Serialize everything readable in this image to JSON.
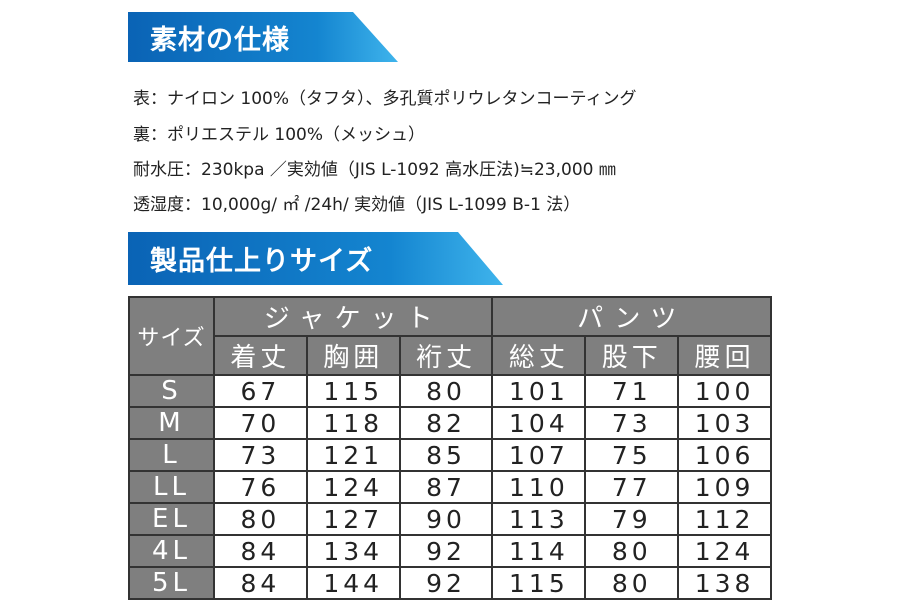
{
  "sections": [
    {
      "title": "素材の仕様",
      "lines": [
        "表：ナイロン 100%（タフタ）、多孔質ポリウレタンコーティング",
        "裏：ポリエステル 100%（メッシュ）",
        "耐水圧：230kpa ／実効値（JIS L-1092 高水圧法)≒23,000 ㎜",
        "透湿度：10,000g/ ㎡ /24h/ 実効値（JIS L-1099 B-1 法）"
      ]
    },
    {
      "title": "製品仕上りサイズ"
    }
  ],
  "table": {
    "corner": "サイズ",
    "groups": [
      "ジャケット",
      "パンツ"
    ],
    "columns": [
      "着丈",
      "胸囲",
      "裄丈",
      "総丈",
      "股下",
      "腰回"
    ],
    "rows": [
      [
        "S",
        67,
        115,
        80,
        101,
        71,
        100
      ],
      [
        "M",
        70,
        118,
        82,
        104,
        73,
        103
      ],
      [
        "L",
        73,
        121,
        85,
        107,
        75,
        106
      ],
      [
        "LL",
        76,
        124,
        87,
        110,
        77,
        109
      ],
      [
        "EL",
        80,
        127,
        90,
        113,
        79,
        112
      ],
      [
        "4L",
        84,
        134,
        92,
        114,
        80,
        124
      ],
      [
        "5L",
        84,
        144,
        92,
        115,
        80,
        138
      ]
    ]
  }
}
